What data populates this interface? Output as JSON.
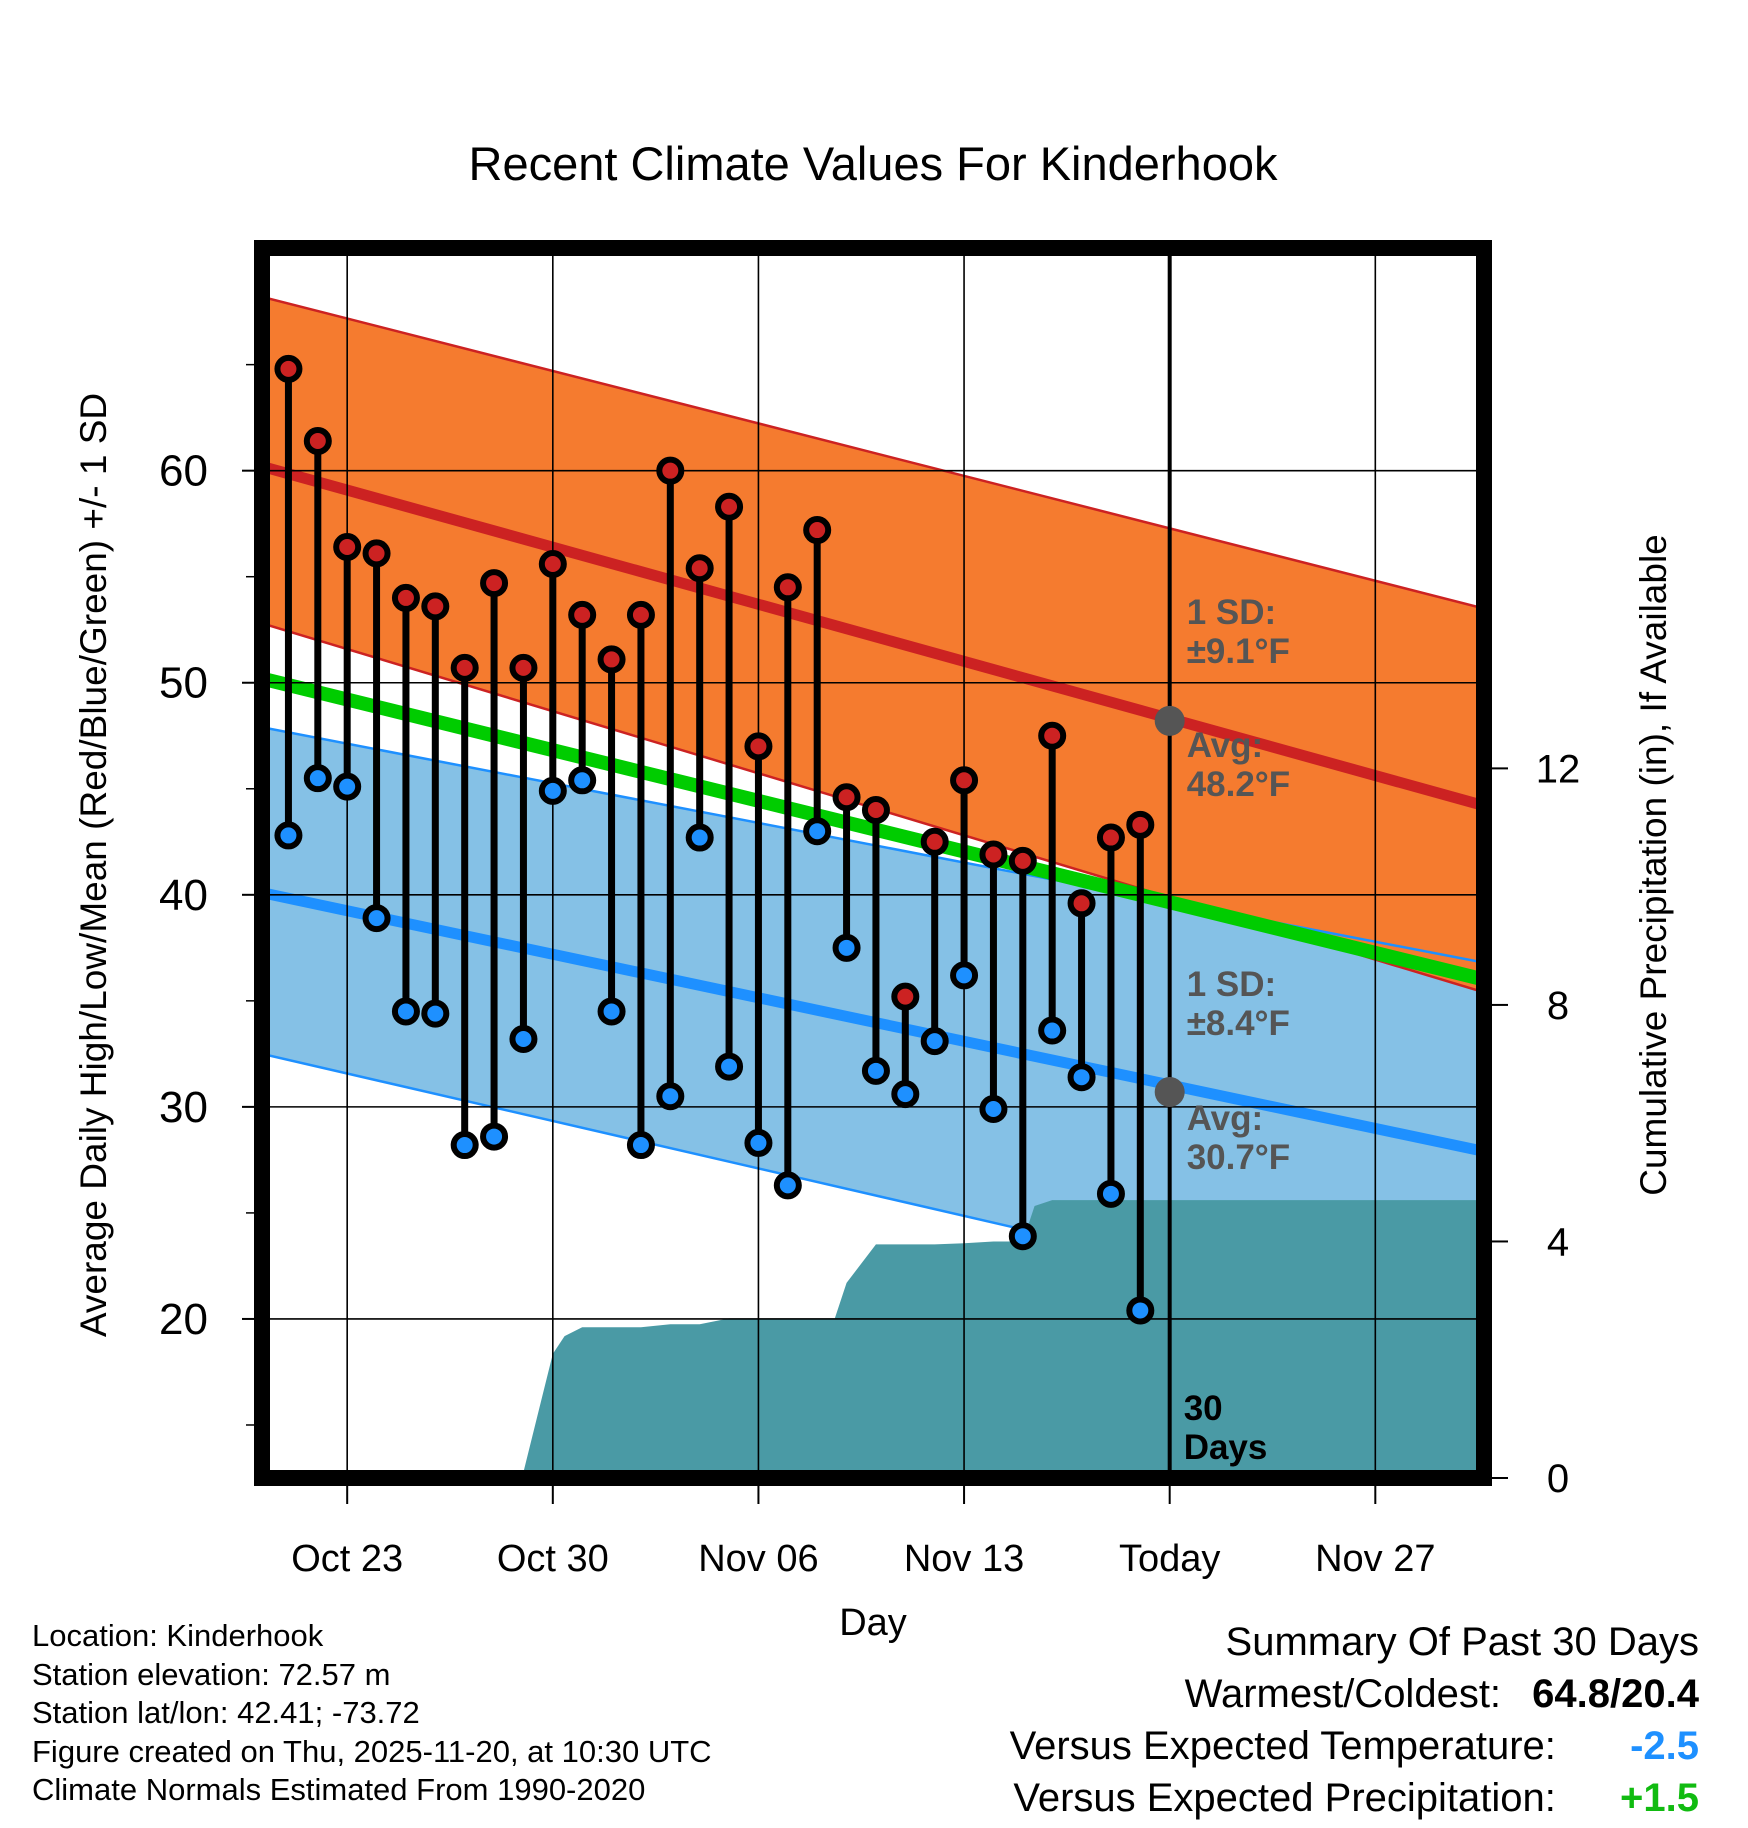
{
  "chart_data": {
    "type": "line",
    "title": "Recent Climate Values For Kinderhook",
    "xlabel": "Day",
    "ylabel": "Average Daily High/Low/Mean (Red/Blue/Green) +/- 1 SD",
    "y2label": "Cumulative Precipitation (in), If Available",
    "ylim": [
      12.5,
      70.5
    ],
    "y2lim": [
      0,
      20.8
    ],
    "xlim": [
      -0.9,
      40.7
    ],
    "y_ticks": [
      20,
      30,
      40,
      50,
      60
    ],
    "y_tick_labels": [
      "20",
      "30",
      "40",
      "50",
      "60"
    ],
    "y_minor_ticks": [
      15,
      25,
      35,
      45,
      55,
      65
    ],
    "y2_ticks": [
      0,
      4,
      8,
      12
    ],
    "y2_tick_labels": [
      "0",
      "4",
      "8",
      "12"
    ],
    "x_ticks": [
      2,
      9,
      16,
      23,
      30,
      37
    ],
    "x_tick_labels": [
      "Oct 23",
      "Oct 30",
      "Nov 06",
      "Nov 13",
      "Today",
      "Nov 27"
    ],
    "today_index": 30,
    "today_label": "30\nDays",
    "normal_high": {
      "x": [
        -0.9,
        40.7
      ],
      "mean": [
        60.2,
        44.2
      ],
      "upper": [
        68.2,
        53.5
      ],
      "lower": [
        52.8,
        35.4
      ]
    },
    "normal_low": {
      "x": [
        -0.9,
        40.7
      ],
      "mean": [
        40.1,
        27.9
      ],
      "upper": [
        47.9,
        36.8
      ],
      "lower": [
        32.5,
        19.2
      ]
    },
    "normal_mean": {
      "x": [
        -0.9,
        40.7
      ],
      "values": [
        50.2,
        36.0
      ]
    },
    "annotations": {
      "high_sd_line1": "1 SD:",
      "high_sd_line2": "±9.1°F",
      "high_avg_line1": "Avg:",
      "high_avg_line2": "48.2°F",
      "low_sd_line1": "1 SD:",
      "low_sd_line2": "±8.4°F",
      "low_avg_line1": "Avg:",
      "low_avg_line2": "30.7°F"
    },
    "today_avg_high": 48.2,
    "today_avg_low": 30.7,
    "series": [
      {
        "name": "Daily High",
        "color": "#cc2222",
        "values": [
          64.8,
          61.4,
          56.4,
          56.1,
          54.0,
          53.6,
          50.7,
          54.7,
          50.7,
          55.6,
          53.2,
          51.1,
          53.2,
          60.0,
          55.4,
          58.3,
          47.0,
          54.5,
          57.2,
          44.6,
          44.0,
          35.2,
          42.5,
          45.4,
          41.9,
          41.6,
          47.5,
          39.6,
          42.7,
          43.3
        ]
      },
      {
        "name": "Daily Low",
        "color": "#1e90ff",
        "values": [
          42.8,
          45.5,
          45.1,
          38.9,
          34.5,
          34.4,
          28.2,
          28.6,
          33.2,
          44.9,
          45.4,
          34.5,
          28.2,
          30.5,
          42.7,
          31.9,
          28.3,
          26.3,
          43.0,
          37.5,
          31.7,
          30.6,
          33.1,
          36.2,
          29.9,
          23.9,
          33.6,
          31.4,
          25.9,
          20.4
        ]
      },
      {
        "name": "Cumulative Precipitation (in)",
        "color": "#4a9aa5",
        "x": [
          -0.9,
          0,
          1,
          2,
          3,
          4,
          5,
          6,
          7,
          8,
          9,
          9.4,
          10,
          11,
          12,
          13,
          14,
          15,
          16,
          17,
          18,
          18.6,
          19,
          20,
          21,
          22,
          23,
          24,
          25,
          25.4,
          26,
          40.7
        ],
        "values": [
          0,
          0,
          0.05,
          0.08,
          0.1,
          0.1,
          0.1,
          0.1,
          0.1,
          0.1,
          2.1,
          2.4,
          2.55,
          2.55,
          2.55,
          2.6,
          2.6,
          2.7,
          2.7,
          2.7,
          2.7,
          2.7,
          3.3,
          3.95,
          3.95,
          3.95,
          3.97,
          4.0,
          4.0,
          4.6,
          4.7,
          4.7
        ]
      }
    ]
  },
  "footer": {
    "location": "Location: Kinderhook",
    "elevation": "Station elevation: 72.57 m",
    "latlon": "Station lat/lon: 42.41; -73.72",
    "created": "Figure created on Thu, 2025-11-20, at 10:30 UTC",
    "normals": "Climate Normals Estimated From 1990-2020"
  },
  "summary": {
    "heading": "Summary Of Past 30 Days",
    "warmest_label": "Warmest/Coldest:",
    "warmest_value": "64.8/20.4",
    "temp_label": "Versus Expected Temperature:",
    "temp_value": "-2.5",
    "precip_label": "Versus Expected Precipitation:",
    "precip_value": "+1.5",
    "temp_color": "#1e90ff",
    "precip_color": "#11bb11"
  }
}
